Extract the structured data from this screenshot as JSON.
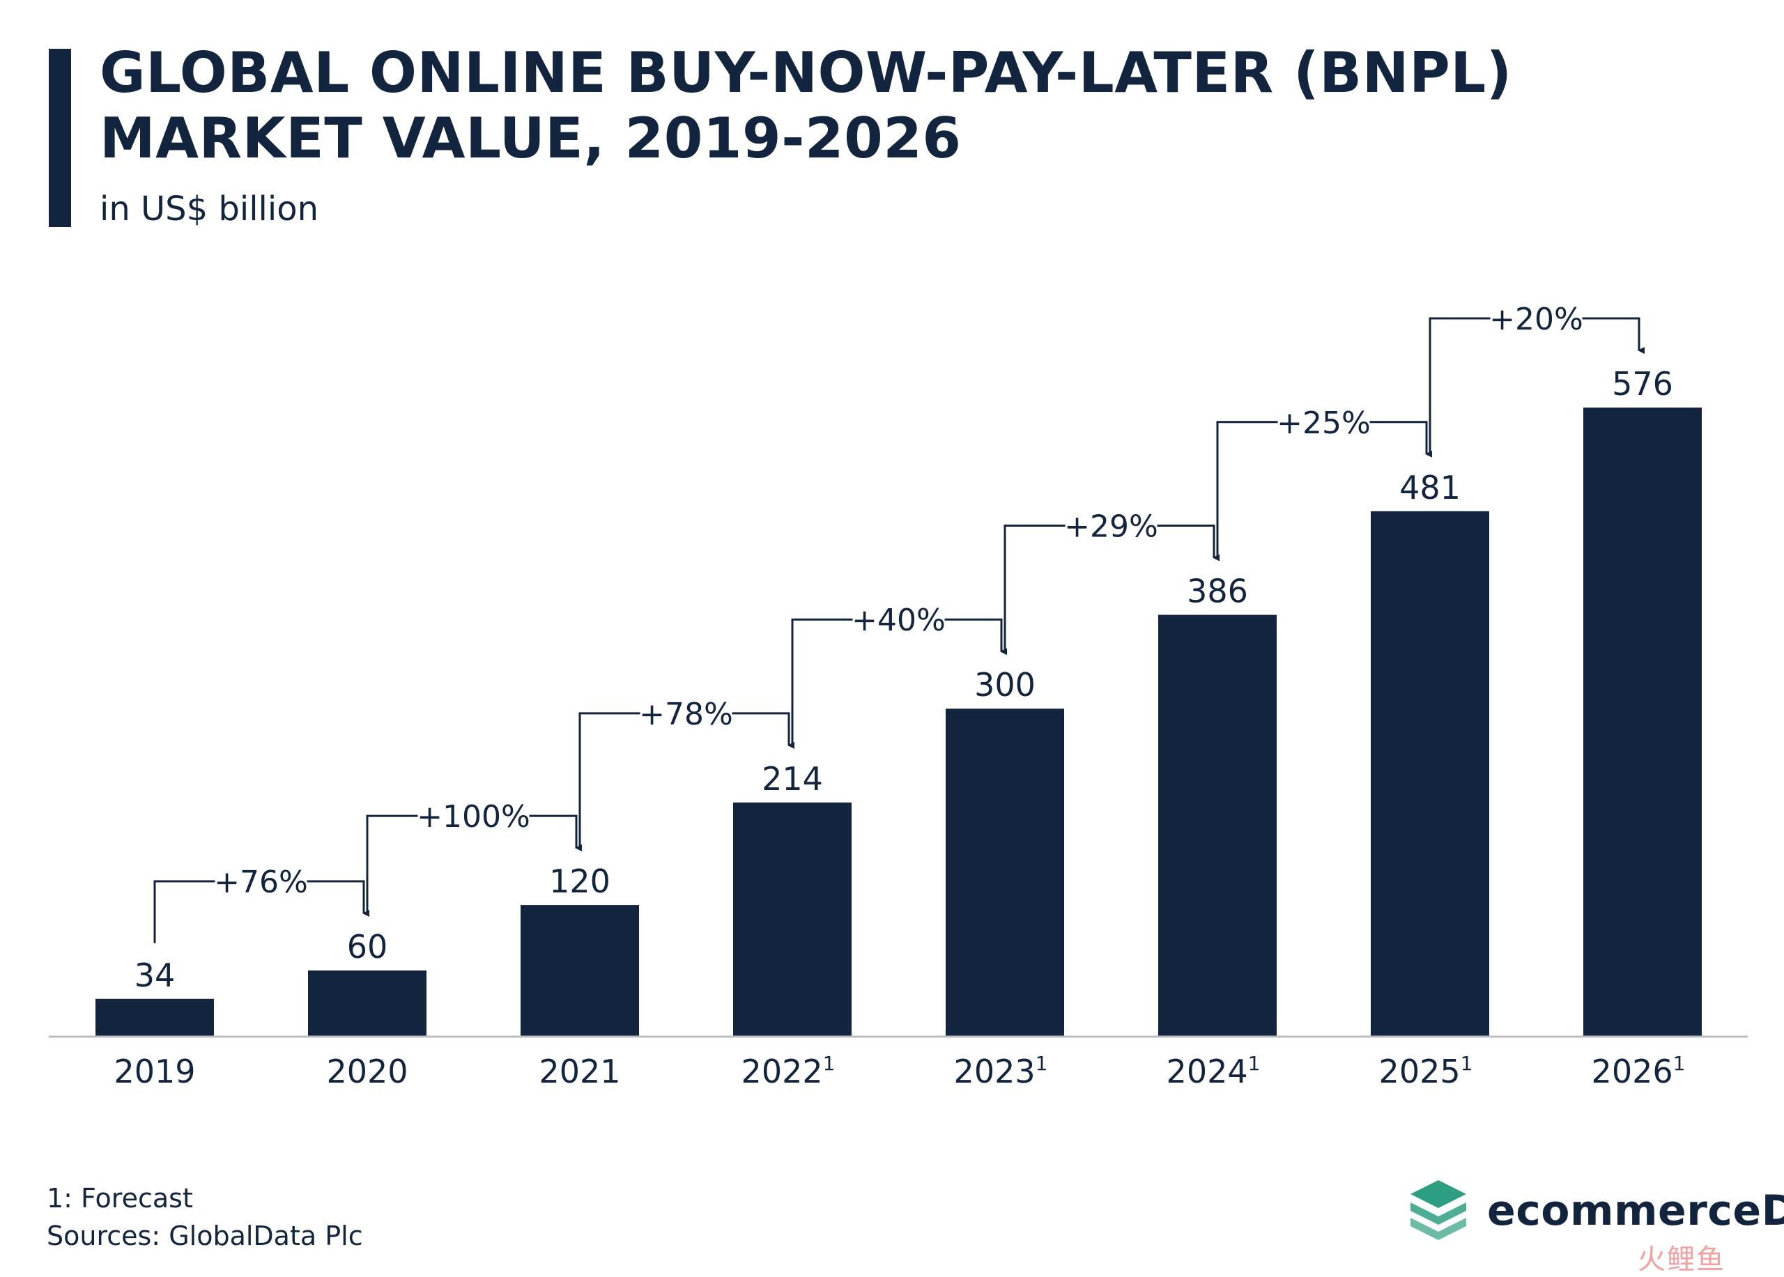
{
  "header": {
    "title": "GLOBAL ONLINE BUY-NOW-PAY-LATER (BNPL) MARKET VALUE, 2019-2026",
    "subtitle": "in US$ billion"
  },
  "footer": {
    "note": "1: Forecast",
    "source": "Sources: GlobalData Plc"
  },
  "brand": {
    "name": "ecommerceDB",
    "icon": "stacked-layers-icon",
    "accent": "#2e9e82",
    "watermark": "火鲤鱼"
  },
  "colors": {
    "bar": "#13253e",
    "text": "#13253e",
    "axis": "#b9bec6"
  },
  "chart_data": {
    "type": "bar",
    "title": "GLOBAL ONLINE BUY-NOW-PAY-LATER (BNPL) MARKET VALUE, 2019-2026",
    "subtitle": "in US$ billion",
    "xlabel": "",
    "ylabel": "",
    "grid": false,
    "ylim": [
      0,
      576
    ],
    "categories": [
      "2019",
      "2020",
      "2021",
      "2022",
      "2023",
      "2024",
      "2025",
      "2026"
    ],
    "category_footnotes": [
      "",
      "",
      "",
      "1",
      "1",
      "1",
      "1",
      "1"
    ],
    "values": [
      34,
      60,
      120,
      214,
      300,
      386,
      481,
      576
    ],
    "value_labels": [
      "34",
      "60",
      "120",
      "214",
      "300",
      "386",
      "481",
      "576"
    ],
    "growth_annotations": [
      "+76%",
      "+100%",
      "+78%",
      "+40%",
      "+29%",
      "+25%",
      "+20%"
    ]
  }
}
